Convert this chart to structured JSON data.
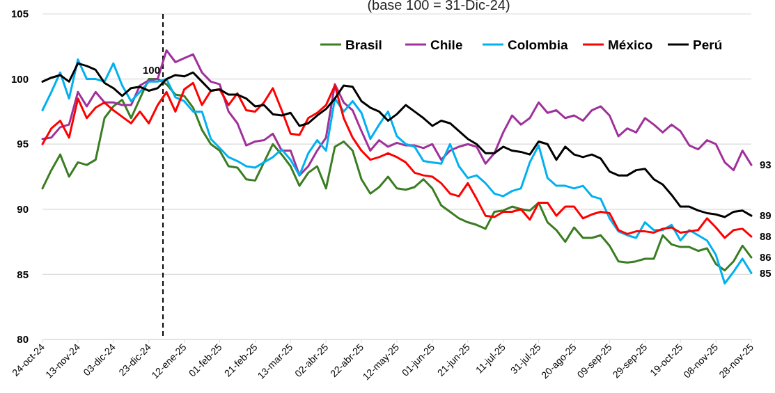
{
  "chart_data": {
    "type": "line",
    "title": "(base 100 = 31-Dic-24)",
    "x": [
      "2024-10-24",
      "2024-10-29",
      "2024-11-03",
      "2024-11-08",
      "2024-11-13",
      "2024-11-18",
      "2024-11-23",
      "2024-11-28",
      "2024-12-03",
      "2024-12-08",
      "2024-12-13",
      "2024-12-18",
      "2024-12-23",
      "2024-12-28",
      "2025-01-02",
      "2025-01-07",
      "2025-01-12",
      "2025-01-17",
      "2025-01-22",
      "2025-01-27",
      "2025-02-01",
      "2025-02-06",
      "2025-02-11",
      "2025-02-16",
      "2025-02-21",
      "2025-02-26",
      "2025-03-03",
      "2025-03-08",
      "2025-03-13",
      "2025-03-18",
      "2025-03-23",
      "2025-03-28",
      "2025-04-02",
      "2025-04-07",
      "2025-04-12",
      "2025-04-17",
      "2025-04-22",
      "2025-04-27",
      "2025-05-02",
      "2025-05-07",
      "2025-05-12",
      "2025-05-17",
      "2025-05-22",
      "2025-05-27",
      "2025-06-01",
      "2025-06-06",
      "2025-06-11",
      "2025-06-16",
      "2025-06-21",
      "2025-06-26",
      "2025-07-01",
      "2025-07-06",
      "2025-07-11",
      "2025-07-16",
      "2025-07-21",
      "2025-07-26",
      "2025-07-31",
      "2025-08-05",
      "2025-08-10",
      "2025-08-15",
      "2025-08-20",
      "2025-08-25",
      "2025-08-30",
      "2025-09-04",
      "2025-09-09",
      "2025-09-14",
      "2025-09-19",
      "2025-09-24",
      "2025-09-29",
      "2025-10-04",
      "2025-10-09",
      "2025-10-14",
      "2025-10-19",
      "2025-10-24",
      "2025-10-29",
      "2025-11-03",
      "2025-11-08",
      "2025-11-13",
      "2025-11-18",
      "2025-11-23",
      "2025-11-28"
    ],
    "series": [
      {
        "name": "Brasil",
        "color": "#3a7d22",
        "values": [
          91.6,
          93.0,
          94.2,
          92.5,
          93.6,
          93.4,
          93.8,
          97.0,
          97.9,
          98.4,
          97.0,
          98.5,
          100.0,
          100.0,
          99.6,
          98.8,
          98.7,
          97.8,
          96.1,
          95.0,
          94.5,
          93.3,
          93.2,
          92.3,
          92.2,
          93.6,
          95.0,
          94.2,
          93.3,
          91.8,
          92.8,
          93.3,
          91.6,
          94.8,
          95.2,
          94.5,
          92.3,
          91.2,
          91.7,
          92.5,
          91.6,
          91.5,
          91.7,
          92.3,
          91.6,
          90.3,
          89.8,
          89.3,
          89.0,
          88.8,
          88.5,
          89.8,
          89.9,
          90.2,
          90.0,
          89.9,
          90.5,
          89.0,
          88.4,
          87.5,
          88.6,
          87.8,
          87.8,
          88.0,
          87.2,
          86.0,
          85.9,
          86.0,
          86.2,
          86.2,
          88.0,
          87.3,
          87.1,
          87.1,
          86.8,
          87.0,
          85.8,
          85.3,
          86.0,
          87.2,
          86.3
        ],
        "value_labels": [
          null,
          null,
          null,
          null,
          null,
          null,
          null,
          null,
          null,
          null,
          null,
          null,
          null,
          null,
          null,
          null,
          null,
          null,
          null,
          null,
          null,
          null,
          null,
          null,
          null,
          null,
          null,
          null,
          null,
          null,
          null,
          null,
          null,
          null,
          null,
          null,
          null,
          null,
          null,
          null,
          null,
          null,
          null,
          null,
          null,
          null,
          null,
          null,
          null,
          null,
          null,
          null,
          null,
          null,
          null,
          null,
          null,
          null,
          null,
          null,
          null,
          null,
          null,
          null,
          null,
          null,
          null,
          null,
          null,
          null,
          null,
          null,
          null,
          null,
          null,
          null,
          null,
          null,
          null,
          null,
          "86"
        ]
      },
      {
        "name": "Chile",
        "color": "#a0309a",
        "values": [
          95.4,
          95.5,
          96.3,
          96.5,
          99.0,
          97.9,
          99.0,
          98.2,
          98.2,
          98.0,
          98.0,
          99.5,
          99.9,
          100.0,
          102.2,
          101.3,
          101.6,
          101.9,
          100.5,
          99.8,
          99.6,
          97.5,
          96.6,
          94.9,
          95.2,
          95.3,
          95.8,
          94.5,
          94.5,
          92.6,
          93.3,
          94.5,
          95.5,
          99.6,
          98.2,
          97.6,
          96.0,
          94.5,
          95.3,
          94.8,
          95.1,
          94.9,
          94.9,
          94.7,
          95.0,
          93.8,
          94.5,
          94.8,
          95.0,
          94.8,
          93.5,
          94.3,
          95.9,
          97.2,
          96.5,
          97.0,
          98.2,
          97.4,
          97.6,
          97.0,
          97.2,
          96.8,
          97.6,
          97.9,
          97.2,
          95.6,
          96.2,
          95.9,
          97.0,
          96.5,
          95.9,
          96.5,
          96.0,
          94.9,
          94.6,
          95.3,
          95.0,
          93.6,
          93.0,
          94.5,
          93.4
        ],
        "value_labels": [
          null,
          null,
          null,
          null,
          null,
          null,
          null,
          null,
          null,
          null,
          null,
          null,
          null,
          null,
          null,
          null,
          null,
          null,
          null,
          null,
          null,
          null,
          null,
          null,
          null,
          null,
          null,
          null,
          null,
          null,
          null,
          null,
          null,
          null,
          null,
          null,
          null,
          null,
          null,
          null,
          null,
          null,
          null,
          null,
          null,
          null,
          null,
          null,
          null,
          null,
          null,
          null,
          null,
          null,
          null,
          null,
          null,
          null,
          null,
          null,
          null,
          null,
          null,
          null,
          null,
          null,
          null,
          null,
          null,
          null,
          null,
          null,
          null,
          null,
          null,
          null,
          null,
          null,
          null,
          null,
          "93"
        ]
      },
      {
        "name": "Colombia",
        "color": "#00b0f0",
        "values": [
          97.6,
          99.0,
          100.5,
          98.5,
          101.5,
          100.0,
          100.0,
          99.8,
          101.2,
          99.5,
          98.3,
          99.0,
          99.8,
          99.8,
          100.0,
          98.6,
          98.3,
          97.5,
          97.5,
          95.4,
          94.7,
          94.0,
          93.7,
          93.3,
          93.2,
          93.6,
          94.0,
          94.6,
          93.8,
          92.6,
          94.3,
          95.3,
          94.5,
          98.5,
          97.5,
          98.3,
          97.4,
          95.4,
          96.5,
          97.5,
          95.6,
          95.0,
          94.8,
          93.7,
          93.6,
          93.5,
          95.0,
          93.3,
          92.4,
          92.6,
          92.0,
          91.2,
          91.0,
          91.4,
          91.6,
          93.6,
          94.9,
          92.4,
          91.8,
          91.8,
          91.6,
          91.8,
          91.0,
          90.8,
          89.3,
          88.3,
          88.0,
          87.8,
          89.0,
          88.4,
          88.4,
          88.8,
          87.6,
          88.4,
          88.0,
          87.6,
          86.5,
          84.3,
          85.2,
          86.2,
          85.1
        ],
        "value_labels": [
          null,
          null,
          null,
          null,
          null,
          null,
          null,
          null,
          null,
          null,
          null,
          null,
          null,
          null,
          null,
          null,
          null,
          null,
          null,
          null,
          null,
          null,
          null,
          null,
          null,
          null,
          null,
          null,
          null,
          null,
          null,
          null,
          null,
          null,
          null,
          null,
          null,
          null,
          null,
          null,
          null,
          null,
          null,
          null,
          null,
          null,
          null,
          null,
          null,
          null,
          null,
          null,
          null,
          null,
          null,
          null,
          null,
          null,
          null,
          null,
          null,
          null,
          null,
          null,
          null,
          null,
          null,
          null,
          null,
          null,
          null,
          null,
          null,
          null,
          null,
          null,
          null,
          null,
          null,
          null,
          "85"
        ]
      },
      {
        "name": "México",
        "color": "#ff0000",
        "values": [
          95.0,
          96.2,
          96.8,
          95.5,
          98.5,
          97.0,
          97.8,
          98.2,
          97.6,
          97.1,
          96.6,
          97.5,
          96.6,
          98.0,
          99.0,
          97.5,
          99.2,
          99.7,
          98.0,
          99.1,
          99.2,
          98.0,
          98.9,
          97.6,
          97.5,
          98.2,
          99.3,
          97.6,
          95.8,
          95.7,
          97.0,
          97.4,
          98.0,
          99.5,
          97.0,
          95.5,
          94.5,
          93.8,
          94.0,
          94.3,
          94.0,
          93.6,
          92.8,
          92.6,
          92.5,
          92.0,
          91.2,
          91.0,
          92.0,
          90.8,
          89.5,
          89.4,
          89.8,
          89.8,
          90.0,
          89.2,
          90.5,
          90.5,
          89.5,
          90.2,
          90.2,
          89.3,
          89.6,
          89.8,
          89.7,
          88.4,
          88.1,
          88.3,
          88.3,
          88.2,
          88.5,
          88.6,
          88.2,
          88.3,
          88.4,
          89.3,
          88.6,
          87.8,
          88.4,
          88.5,
          87.9
        ],
        "value_labels": [
          null,
          null,
          null,
          null,
          null,
          null,
          null,
          null,
          null,
          null,
          null,
          null,
          null,
          null,
          null,
          null,
          null,
          null,
          null,
          null,
          null,
          null,
          null,
          null,
          null,
          null,
          null,
          null,
          null,
          null,
          null,
          null,
          null,
          null,
          null,
          null,
          null,
          null,
          null,
          null,
          null,
          null,
          null,
          null,
          null,
          null,
          null,
          null,
          null,
          null,
          null,
          null,
          null,
          null,
          null,
          null,
          null,
          null,
          null,
          null,
          null,
          null,
          null,
          null,
          null,
          null,
          null,
          null,
          null,
          null,
          null,
          null,
          null,
          null,
          null,
          null,
          null,
          null,
          null,
          null,
          "88"
        ]
      },
      {
        "name": "Perú",
        "color": "#000000",
        "values": [
          99.8,
          100.1,
          100.3,
          99.8,
          101.2,
          101.0,
          100.7,
          99.7,
          99.3,
          98.7,
          99.3,
          99.4,
          99.1,
          99.3,
          100.0,
          100.3,
          100.2,
          100.5,
          99.8,
          99.1,
          99.2,
          98.8,
          98.8,
          98.5,
          97.9,
          98.0,
          97.3,
          97.2,
          97.4,
          96.4,
          96.6,
          97.2,
          97.7,
          98.5,
          99.5,
          99.4,
          98.3,
          97.8,
          97.5,
          96.8,
          97.3,
          98.0,
          97.5,
          97.0,
          96.4,
          96.8,
          96.6,
          96.0,
          95.4,
          95.0,
          94.3,
          94.3,
          94.8,
          94.5,
          94.4,
          94.2,
          95.2,
          95.0,
          93.8,
          94.8,
          94.2,
          94.0,
          94.2,
          93.9,
          92.9,
          92.6,
          92.6,
          93.0,
          93.1,
          92.3,
          91.9,
          91.1,
          90.2,
          90.2,
          89.9,
          89.7,
          89.6,
          89.4,
          89.8,
          89.9,
          89.5
        ],
        "value_labels": [
          null,
          null,
          null,
          null,
          null,
          null,
          null,
          null,
          null,
          null,
          null,
          null,
          null,
          null,
          null,
          null,
          null,
          null,
          null,
          null,
          null,
          null,
          null,
          null,
          null,
          null,
          null,
          null,
          null,
          null,
          null,
          null,
          null,
          null,
          null,
          null,
          null,
          null,
          null,
          null,
          null,
          null,
          null,
          null,
          null,
          null,
          null,
          null,
          null,
          null,
          null,
          null,
          null,
          null,
          null,
          null,
          null,
          null,
          null,
          null,
          null,
          null,
          null,
          null,
          null,
          null,
          null,
          null,
          null,
          null,
          null,
          null,
          null,
          null,
          null,
          null,
          null,
          null,
          null,
          null,
          "89"
        ]
      }
    ],
    "xlim": [
      "2024-10-24",
      "2025-11-28"
    ],
    "xticks": [
      {
        "value": "2024-10-24",
        "label": "24-oct-24"
      },
      {
        "value": "2024-11-13",
        "label": "13-nov-24"
      },
      {
        "value": "2024-12-03",
        "label": "03-dic-24"
      },
      {
        "value": "2024-12-23",
        "label": "23-dic-24"
      },
      {
        "value": "2025-01-12",
        "label": "12-ene-25"
      },
      {
        "value": "2025-02-01",
        "label": "01-feb-25"
      },
      {
        "value": "2025-02-21",
        "label": "21-feb-25"
      },
      {
        "value": "2025-03-13",
        "label": "13-mar-25"
      },
      {
        "value": "2025-04-02",
        "label": "02-abr-25"
      },
      {
        "value": "2025-04-22",
        "label": "22-abr-25"
      },
      {
        "value": "2025-05-12",
        "label": "12-may-25"
      },
      {
        "value": "2025-06-01",
        "label": "01-jun-25"
      },
      {
        "value": "2025-06-21",
        "label": "21-jun-25"
      },
      {
        "value": "2025-07-11",
        "label": "11-jul-25"
      },
      {
        "value": "2025-07-31",
        "label": "31-jul-25"
      },
      {
        "value": "2025-08-20",
        "label": "20-ago-25"
      },
      {
        "value": "2025-09-09",
        "label": "09-sep-25"
      },
      {
        "value": "2025-09-29",
        "label": "29-sep-25"
      },
      {
        "value": "2025-10-19",
        "label": "19-oct-25"
      },
      {
        "value": "2025-11-08",
        "label": "08-nov-25"
      },
      {
        "value": "2025-11-28",
        "label": "28-nov-25"
      }
    ],
    "ylim": [
      80,
      105
    ],
    "yticks": [
      80,
      85,
      90,
      95,
      100,
      105
    ],
    "grid": "y",
    "legend": "top right",
    "marker": "none",
    "line_style": "solid",
    "ref_lines": [
      {
        "axis": "x",
        "value": "2024-12-31",
        "color": "#000000",
        "line_style": "dashed"
      }
    ],
    "annotations": [
      {
        "text": "100",
        "x": "2024-12-31",
        "y": 100
      }
    ]
  }
}
